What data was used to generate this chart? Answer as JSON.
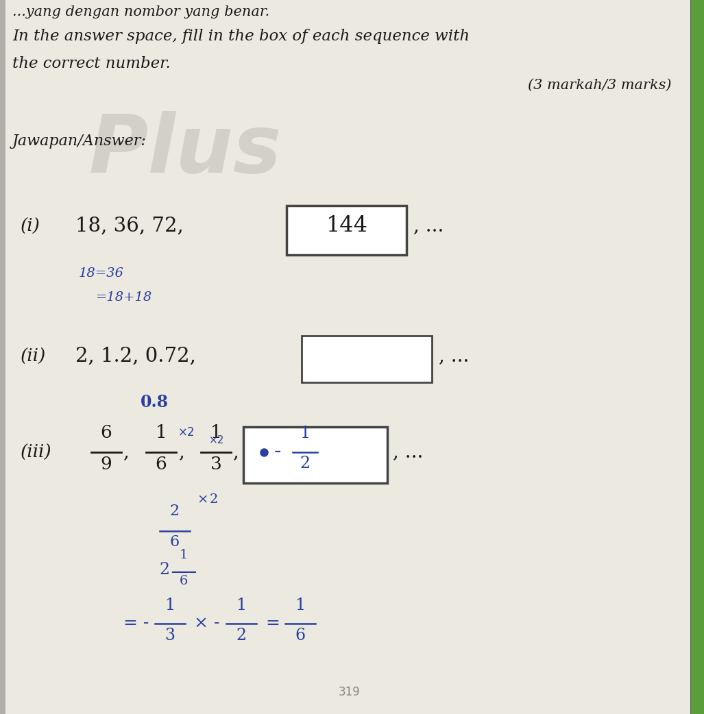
{
  "bg_color": "#c8c8c0",
  "paper_color": "#e8e5de",
  "text_color": "#1a1a1a",
  "blue_color": "#2a3fa0",
  "box_edge_color": "#444444",
  "title_line1": "In the answer space, fill in the box of each sequence with",
  "title_line2": "the correct number.",
  "top_partial": "...yang dengan nombor yang benar.",
  "marks_text": "(3 markah/3 marks)",
  "jawapan_text": "Jawapan/Answer:",
  "watermark_text": "Plus",
  "seq_i_label": "(i)",
  "seq_i_terms": "18, 36, 72,",
  "seq_i_answer": "144",
  "seq_i_dots": ", ...",
  "seq_i_w1": "18=36",
  "seq_i_w2": "=18+18",
  "seq_ii_label": "(ii)",
  "seq_ii_terms": "2, 1.2, 0.72,",
  "seq_ii_dots": ", ...",
  "seq_ii_working": "0.8",
  "seq_iii_label": "(iii)",
  "seq_iii_dots": ", ...",
  "bottom_num": "319",
  "green_color": "#5a9e3a",
  "right_line_color": "#888888"
}
